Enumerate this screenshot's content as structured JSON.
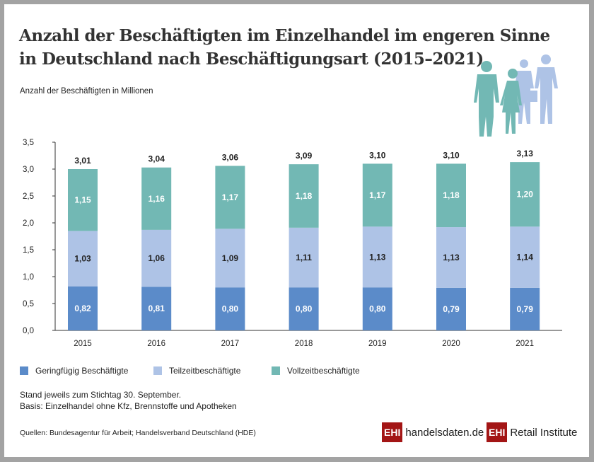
{
  "title_line1": "Anzahl der Beschäftigten im Einzelhandel im engeren Sinne",
  "title_line2": "in Deutschland nach Beschäftigungsart (2015–2021)",
  "notes": [
    "Stand jeweils zum Stichtag 30. September.",
    "Basis: Einzelhandel ohne Kfz, Brennstoffe und Apotheken"
  ],
  "sources": "Quellen: Bundesagentur für Arbeit; Handelsverband Deutschland (HDE)",
  "logos": {
    "ehi": "EHI",
    "site": "handelsdaten.de",
    "institute": "Retail Institute"
  },
  "chart_data": {
    "type": "stacked-bar",
    "ylabel": "Anzahl der Beschäftigten in Millionen",
    "ylim": [
      0,
      3.5
    ],
    "yticks": [
      "0,0",
      "0,5",
      "1,0",
      "1,5",
      "2,0",
      "2,5",
      "3,0",
      "3,5"
    ],
    "categories": [
      "2015",
      "2016",
      "2017",
      "2018",
      "2019",
      "2020",
      "2021"
    ],
    "series": [
      {
        "name": "Geringfügig Beschäftigte",
        "color": "#5b8bc9",
        "values": [
          0.82,
          0.81,
          0.8,
          0.8,
          0.8,
          0.79,
          0.79
        ],
        "labels": [
          "0,82",
          "0,81",
          "0,80",
          "0,80",
          "0,80",
          "0,79",
          "0,79"
        ]
      },
      {
        "name": "Teilzeitbeschäftigte",
        "color": "#aec3e6",
        "values": [
          1.03,
          1.06,
          1.09,
          1.11,
          1.13,
          1.13,
          1.14
        ],
        "labels": [
          "1,03",
          "1,06",
          "1,09",
          "1,11",
          "1,13",
          "1,13",
          "1,14"
        ]
      },
      {
        "name": "Vollzeitbeschäftigte",
        "color": "#72b8b4",
        "values": [
          1.15,
          1.16,
          1.17,
          1.18,
          1.17,
          1.18,
          1.2
        ],
        "labels": [
          "1,15",
          "1,16",
          "1,17",
          "1,18",
          "1,17",
          "1,18",
          "1,20"
        ]
      }
    ],
    "totals": [
      "3,01",
      "3,04",
      "3,06",
      "3,09",
      "3,10",
      "3,10",
      "3,13"
    ],
    "legend": "bottom-left"
  }
}
